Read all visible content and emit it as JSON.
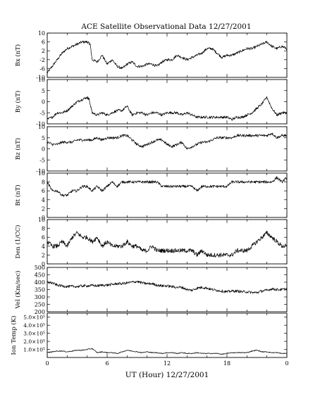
{
  "chart_data": {
    "title": "ACE Satellite Observational Data   12/27/2001",
    "xlabel": "UT (Hour)  12/27/2001",
    "x_ticks": [
      "0",
      "6",
      "12",
      "18",
      "0"
    ],
    "xlim": [
      0,
      24
    ],
    "panels": [
      {
        "type": "line",
        "ylabel": "Bx (nT)",
        "ylim": [
          -10,
          10
        ],
        "yticks": [
          "-10",
          "-6",
          "-2",
          "2",
          "6",
          "10"
        ],
        "ytick_values": [
          -10,
          -6,
          -2,
          2,
          6,
          10
        ],
        "x": [
          0,
          0.5,
          1,
          1.5,
          2,
          2.5,
          3,
          3.5,
          4,
          4.3,
          4.5,
          5,
          5.5,
          6,
          6.5,
          7,
          7.5,
          8,
          8.5,
          9,
          9.5,
          10,
          10.5,
          11,
          11.5,
          12,
          12.5,
          13,
          13.5,
          14,
          14.5,
          15,
          15.5,
          16,
          16.5,
          17,
          17.5,
          18,
          18.5,
          19,
          19.5,
          20,
          20.5,
          21,
          21.5,
          22,
          22.5,
          23,
          23.5,
          24
        ],
        "values": [
          -8,
          -5,
          -2,
          1,
          3,
          4,
          5,
          6,
          6,
          5,
          -2,
          -3,
          0,
          -4,
          -2,
          -5,
          -6,
          -4,
          -3,
          -5,
          -5,
          -4,
          -4,
          -5,
          -3,
          -2,
          -2,
          0,
          -1,
          -2,
          -1,
          0,
          1,
          3,
          3,
          1,
          -1,
          0,
          0,
          1,
          2,
          3,
          3,
          4,
          5,
          6,
          4,
          3,
          4,
          3
        ]
      },
      {
        "type": "line",
        "ylabel": "By (nT)",
        "ylim": [
          -10,
          10
        ],
        "yticks": [
          "-10",
          "-5",
          "0",
          "5",
          "10"
        ],
        "ytick_values": [
          -10,
          -5,
          0,
          5,
          10
        ],
        "x": [
          0,
          0.5,
          1,
          1.5,
          2,
          2.5,
          3,
          3.5,
          4,
          4.2,
          4.5,
          5,
          5.5,
          6,
          6.5,
          7,
          7.5,
          8,
          8.5,
          9,
          9.5,
          10,
          10.5,
          11,
          11.5,
          12,
          12.5,
          13,
          13.5,
          14,
          14.5,
          15,
          15.5,
          16,
          16.5,
          17,
          17.5,
          18,
          18.5,
          19,
          19.5,
          20,
          20.5,
          21,
          21.5,
          22,
          22.5,
          23,
          23.5,
          24
        ],
        "values": [
          -8,
          -7,
          -5,
          -5,
          -4,
          -2,
          0,
          1,
          2,
          1,
          -5,
          -6,
          -5,
          -6,
          -5,
          -4,
          -4,
          -2,
          -6,
          -5,
          -5,
          -6,
          -5,
          -5,
          -6,
          -5,
          -5,
          -5,
          -6,
          -5,
          -6,
          -7,
          -7,
          -7,
          -7,
          -7,
          -7,
          -7,
          -8,
          -7,
          -7,
          -6,
          -5,
          -3,
          -1,
          2,
          -3,
          -6,
          -5,
          -5
        ]
      },
      {
        "type": "line",
        "ylabel": "Bz (nT)",
        "ylim": [
          -10,
          10
        ],
        "yticks": [
          "-10",
          "-5",
          "0",
          "5",
          "10"
        ],
        "ytick_values": [
          -10,
          -5,
          0,
          5,
          10
        ],
        "x": [
          0,
          0.5,
          1,
          1.5,
          2,
          2.5,
          3,
          3.5,
          4,
          4.5,
          5,
          5.5,
          6,
          6.5,
          7,
          7.5,
          8,
          8.5,
          9,
          9.5,
          10,
          10.5,
          11,
          11.5,
          12,
          12.5,
          13,
          13.5,
          14,
          14.5,
          15,
          15.5,
          16,
          16.5,
          17,
          17.5,
          18,
          18.5,
          19,
          19.5,
          20,
          20.5,
          21,
          21.5,
          22,
          22.5,
          23,
          23.5,
          24
        ],
        "values": [
          3,
          2,
          2,
          3,
          3,
          3,
          4,
          4,
          4,
          4,
          5,
          4,
          5,
          5,
          5,
          6,
          6,
          4,
          2,
          1,
          2,
          3,
          4,
          4,
          2,
          1,
          2,
          3,
          0,
          1,
          2,
          3,
          3,
          4,
          5,
          5,
          5,
          5,
          6,
          6,
          6,
          6,
          6,
          6,
          6,
          7,
          5,
          6,
          6
        ]
      },
      {
        "type": "line",
        "ylabel": "Bt (nT)",
        "ylim": [
          0,
          10
        ],
        "yticks": [
          "0",
          "2",
          "4",
          "6",
          "8",
          "10"
        ],
        "ytick_values": [
          0,
          2,
          4,
          6,
          8,
          10
        ],
        "x": [
          0,
          0.5,
          1,
          1.5,
          2,
          2.5,
          3,
          3.5,
          4,
          4.5,
          5,
          5.5,
          6,
          6.5,
          7,
          7.5,
          8,
          8.5,
          9,
          9.5,
          10,
          10.5,
          11,
          11.5,
          12,
          12.5,
          13,
          13.5,
          14,
          14.5,
          15,
          15.5,
          16,
          16.5,
          17,
          17.5,
          18,
          18.5,
          19,
          19.5,
          20,
          20.5,
          21,
          21.5,
          22,
          22.5,
          23,
          23.5,
          24
        ],
        "values": [
          8,
          6,
          6,
          5,
          5,
          6,
          6,
          7,
          7,
          6,
          7,
          6,
          7,
          8,
          7,
          8,
          8,
          8,
          8,
          8,
          8,
          8,
          8,
          7,
          7,
          7,
          7,
          7,
          7,
          7,
          6,
          7,
          7,
          7,
          7,
          7,
          7,
          8,
          8,
          8,
          8,
          8,
          8,
          8,
          8,
          8,
          9,
          8,
          9
        ]
      },
      {
        "type": "line",
        "ylabel": "Den (1/CC)",
        "ylim": [
          0,
          10
        ],
        "yticks": [
          "0",
          "2",
          "4",
          "6",
          "8",
          "10"
        ],
        "ytick_values": [
          0,
          2,
          4,
          6,
          8,
          10
        ],
        "x": [
          0,
          0.5,
          1,
          1.5,
          2,
          2.5,
          3,
          3.5,
          4,
          4.5,
          5,
          5.5,
          6,
          6.5,
          7,
          7.5,
          8,
          8.5,
          9,
          9.5,
          10,
          10.5,
          11,
          11.5,
          12,
          12.5,
          13,
          13.5,
          14,
          14.5,
          15,
          15.5,
          16,
          16.5,
          17,
          17.5,
          18,
          18.5,
          19,
          19.5,
          20,
          20.5,
          21,
          21.5,
          22,
          22.5,
          23,
          23.5,
          24
        ],
        "values": [
          5,
          4,
          4,
          5,
          4,
          6,
          7,
          6,
          6,
          5,
          6,
          4,
          5,
          4,
          4,
          4,
          5,
          4,
          4,
          3,
          3,
          4,
          3,
          3,
          3,
          3,
          3,
          3,
          3,
          3,
          2,
          3,
          2,
          2,
          2,
          2,
          2,
          2,
          3,
          3,
          3,
          4,
          5,
          6,
          7,
          6,
          5,
          4,
          4
        ]
      },
      {
        "type": "line",
        "ylabel": "Vel (Km/sec)",
        "ylim": [
          200,
          500
        ],
        "yticks": [
          "200",
          "250",
          "300",
          "350",
          "400",
          "450",
          "500"
        ],
        "ytick_values": [
          200,
          250,
          300,
          350,
          400,
          450,
          500
        ],
        "x": [
          0,
          0.5,
          1,
          1.5,
          2,
          2.5,
          3,
          3.5,
          4,
          4.5,
          5,
          5.5,
          6,
          6.5,
          7,
          7.5,
          8,
          8.5,
          9,
          9.5,
          10,
          10.5,
          11,
          11.5,
          12,
          12.5,
          13,
          13.5,
          14,
          14.5,
          15,
          15.5,
          16,
          16.5,
          17,
          17.5,
          18,
          18.5,
          19,
          19.5,
          20,
          20.5,
          21,
          21.5,
          22,
          22.5,
          23,
          23.5,
          24
        ],
        "values": [
          400,
          395,
          380,
          375,
          370,
          372,
          370,
          375,
          375,
          378,
          375,
          380,
          380,
          385,
          390,
          390,
          395,
          400,
          405,
          395,
          390,
          390,
          380,
          375,
          375,
          370,
          365,
          365,
          350,
          345,
          360,
          365,
          360,
          350,
          345,
          340,
          335,
          340,
          340,
          335,
          335,
          330,
          330,
          340,
          345,
          355,
          350,
          350,
          355
        ]
      },
      {
        "type": "line",
        "ylabel": "Ion Temp (K)",
        "ylim": [
          0,
          550000
        ],
        "yticks": [
          "1.0×10⁵",
          "2.0×10⁵",
          "3.0×10⁵",
          "4.0×10⁵",
          "5.0×10⁵"
        ],
        "ytick_values": [
          100000,
          200000,
          300000,
          400000,
          500000
        ],
        "x": [
          0,
          0.5,
          1,
          1.5,
          2,
          2.5,
          3,
          3.5,
          4,
          4.5,
          5,
          5.5,
          6,
          6.5,
          7,
          7.5,
          8,
          8.5,
          9,
          9.5,
          10,
          10.5,
          11,
          11.5,
          12,
          12.5,
          13,
          13.5,
          14,
          14.5,
          15,
          15.5,
          16,
          16.5,
          17,
          17.5,
          18,
          18.5,
          19,
          19.5,
          20,
          20.5,
          21,
          21.5,
          22,
          22.5,
          23,
          23.5,
          24
        ],
        "values": [
          60000,
          70000,
          80000,
          80000,
          70000,
          80000,
          90000,
          90000,
          100000,
          110000,
          60000,
          70000,
          60000,
          60000,
          50000,
          70000,
          90000,
          80000,
          70000,
          60000,
          70000,
          60000,
          60000,
          50000,
          60000,
          60000,
          50000,
          60000,
          50000,
          50000,
          60000,
          50000,
          50000,
          50000,
          50000,
          40000,
          50000,
          60000,
          60000,
          60000,
          60000,
          80000,
          90000,
          70000,
          70000,
          60000,
          60000,
          50000,
          50000
        ]
      }
    ]
  }
}
